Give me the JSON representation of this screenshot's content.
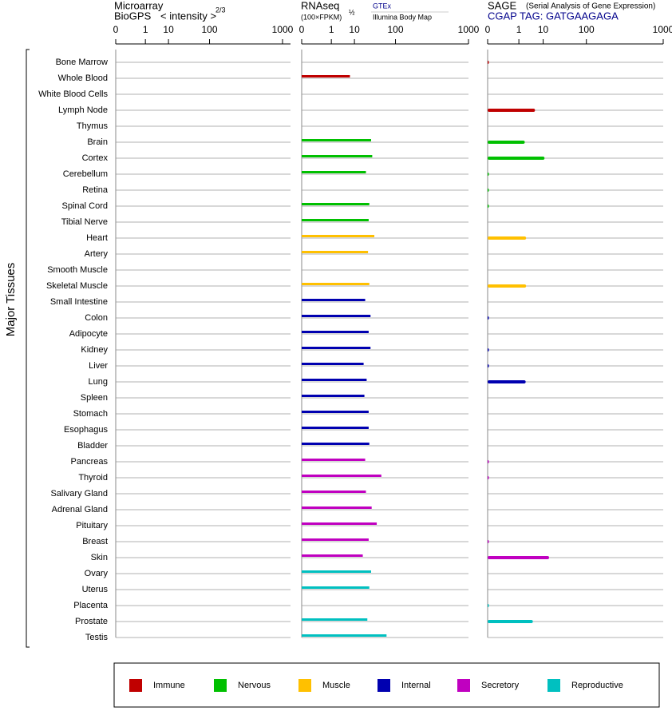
{
  "chart_data": [
    {
      "type": "bar",
      "title": "Microarray",
      "subtitle": "BioGPS",
      "axis_label": "< intensity >",
      "axis_power": "2/3",
      "ylabel": "Major Tissues",
      "categories": [
        "Bone Marrow",
        "Whole Blood",
        "White Blood Cells",
        "Lymph Node",
        "Thymus",
        "Brain",
        "Cortex",
        "Cerebellum",
        "Retina",
        "Spinal Cord",
        "Tibial Nerve",
        "Heart",
        "Artery",
        "Smooth Muscle",
        "Skeletal Muscle",
        "Small Intestine",
        "Colon",
        "Adipocyte",
        "Kidney",
        "Liver",
        "Lung",
        "Spleen",
        "Stomach",
        "Esophagus",
        "Bladder",
        "Pancreas",
        "Thyroid",
        "Salivary Gland",
        "Adrenal Gland",
        "Pituitary",
        "Breast",
        "Skin",
        "Ovary",
        "Uterus",
        "Placenta",
        "Prostate",
        "Testis"
      ],
      "category_groups": [
        "Immune",
        "Immune",
        "Immune",
        "Immune",
        "Immune",
        "Nervous",
        "Nervous",
        "Nervous",
        "Nervous",
        "Nervous",
        "Nervous",
        "Muscle",
        "Muscle",
        "Muscle",
        "Muscle",
        "Internal",
        "Internal",
        "Internal",
        "Internal",
        "Internal",
        "Internal",
        "Internal",
        "Internal",
        "Internal",
        "Internal",
        "Secretory",
        "Secretory",
        "Secretory",
        "Secretory",
        "Secretory",
        "Secretory",
        "Secretory",
        "Reproductive",
        "Reproductive",
        "Reproductive",
        "Reproductive",
        "Reproductive"
      ],
      "legend": [
        {
          "name": "Immune",
          "color": "#c00000"
        },
        {
          "name": "Nervous",
          "color": "#00c000"
        },
        {
          "name": "Muscle",
          "color": "#ffc000"
        },
        {
          "name": "Internal",
          "color": "#0000b0"
        },
        {
          "name": "Secretory",
          "color": "#c000c0"
        },
        {
          "name": "Reproductive",
          "color": "#00c0c0"
        }
      ],
      "xlim": [
        0,
        1000
      ],
      "xticks": [
        0,
        1,
        10,
        100,
        1000
      ],
      "scale": "power",
      "exponent": 0.25,
      "grid": true,
      "values": [
        null,
        null,
        null,
        null,
        null,
        null,
        null,
        null,
        null,
        null,
        null,
        null,
        null,
        null,
        null,
        null,
        null,
        null,
        null,
        null,
        null,
        null,
        null,
        null,
        null,
        null,
        null,
        null,
        null,
        null,
        null,
        null,
        null,
        null,
        null,
        null,
        null
      ]
    },
    {
      "type": "bar",
      "title": "RNAseq",
      "subtitle": "(100×FPKM)",
      "axis_power": "½",
      "sources": [
        "GTEx",
        "Illumina Body Map"
      ],
      "xlim": [
        0,
        1000
      ],
      "xticks": [
        0,
        1,
        10,
        100,
        1000
      ],
      "scale": "power",
      "exponent": 0.25,
      "grid": true,
      "values": [
        null,
        7,
        null,
        null,
        null,
        30,
        32,
        22,
        null,
        27,
        26,
        36,
        25,
        null,
        27,
        21,
        29,
        26,
        29,
        19,
        23,
        20,
        26,
        26,
        27,
        21,
        52,
        22,
        31,
        41,
        26,
        18,
        30,
        27,
        null,
        24,
        67
      ]
    },
    {
      "type": "bar",
      "title": "SAGE",
      "note": "(Serial Analysis of Gene Expression)",
      "subtitle": "CGAP TAG: GATGAAGAGA",
      "xlim": [
        0,
        1000
      ],
      "xticks": [
        0,
        1,
        10,
        100,
        1000
      ],
      "scale": "power",
      "exponent": 0.25,
      "grid": true,
      "values": [
        0,
        null,
        null,
        5.3,
        null,
        2,
        11,
        0,
        0,
        0,
        null,
        2.3,
        null,
        null,
        2.3,
        null,
        0,
        null,
        0,
        0,
        2.2,
        null,
        null,
        null,
        null,
        0,
        0,
        null,
        null,
        null,
        0,
        15,
        null,
        null,
        0,
        4.4,
        null
      ]
    }
  ]
}
